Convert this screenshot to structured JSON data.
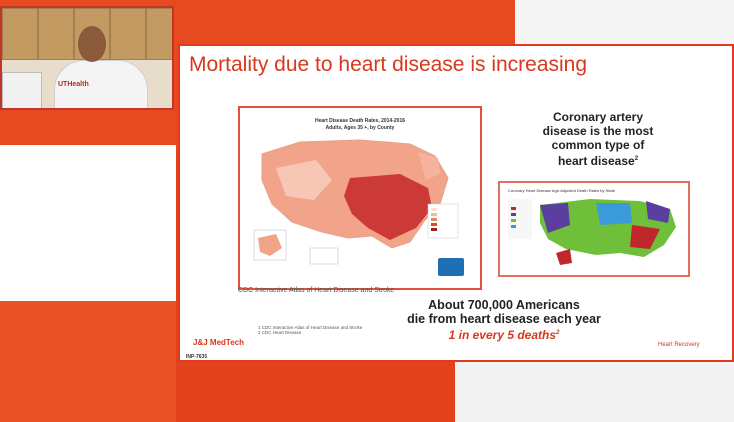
{
  "webcam": {
    "badge_text": "UTHealth"
  },
  "slide": {
    "title": "Mortality due to heart disease is increasing",
    "map": {
      "title_line1": "Heart Disease Death Rates, 2014-2016",
      "title_line2": "Adults, Ages 35 +, by County",
      "caption": "CDC Interactive Atlas of Heart Disease and Stroke"
    },
    "coronary": {
      "line1": "Coronary artery",
      "line2": "disease is the most",
      "line3": "common type of",
      "line4": "heart disease",
      "footnote_marker": "2"
    },
    "small_map": {
      "title": "Coronary Heart Disease Age-Adjusted Death Rates by State"
    },
    "stat": {
      "line1": "About 700,000 Americans",
      "line2": "die from heart disease each year",
      "emphasis": "1 in every 5 deaths",
      "emphasis_marker": "2"
    },
    "brand": "J&J MedTech",
    "footnotes": [
      "1  CDC Interactive Atlas of Heart Disease and Stroke",
      "2  CDC Heart Disease"
    ],
    "footer_right": "Heart Recovery",
    "doc_code": "INP-7635"
  },
  "colors": {
    "accent": "#d8381c",
    "background_orange": "#e4411b",
    "map_dark": "#b91c1c",
    "map_light": "#fbd5c5"
  }
}
